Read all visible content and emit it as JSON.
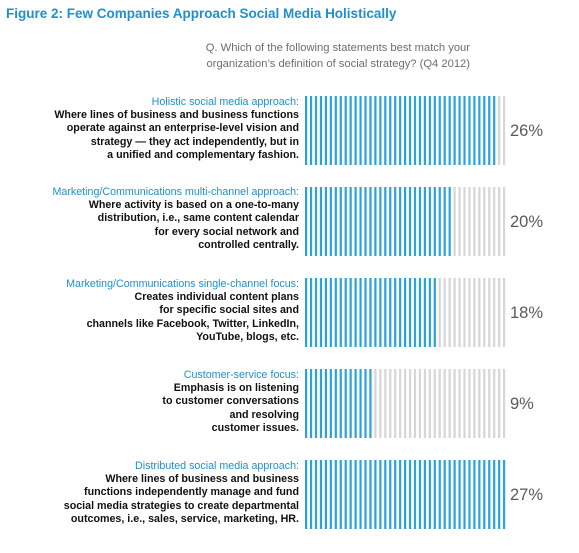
{
  "title": "Figure 2: Few Companies Approach Social Media Holistically",
  "question": {
    "line1": "Q. Which of the following statements best match your",
    "line2": "organization’s definition of social strategy? (Q4 2012)"
  },
  "colors": {
    "title": "#1f8fcf",
    "bar_filled": "#2aa3dc",
    "bar_empty": "#d6d6d6",
    "category": "#1f8fcf"
  },
  "chart_data": {
    "type": "bar",
    "orientation": "horizontal",
    "categories": [
      "Holistic social media approach:",
      "Marketing/Communications multi-channel approach:",
      "Marketing/Communications single-channel focus:",
      "Customer-service focus:",
      "Distributed social media approach:"
    ],
    "descriptions": [
      [
        "Where lines of business and business functions",
        "operate against an enterprise-level vision and",
        "strategy — they act independently, but in",
        "a unified and complementary fashion."
      ],
      [
        "Where activity is based on a one-to-many",
        "distribution, i.e., same content calendar",
        "for every social network and",
        "controlled centrally."
      ],
      [
        "Creates individual content plans",
        "for specific social sites and",
        "channels like Facebook, Twitter, LinkedIn,",
        "YouTube, blogs, etc."
      ],
      [
        "Emphasis is on listening",
        "to customer conversations",
        "and resolving",
        "customer issues."
      ],
      [
        "Where lines of business and business",
        "functions independently manage and fund",
        "social media strategies to create departmental",
        "outcomes, i.e., sales, service, marketing, HR."
      ]
    ],
    "values": [
      26,
      20,
      18,
      9,
      27
    ],
    "value_labels": [
      "26%",
      "20%",
      "18%",
      "9%",
      "27%"
    ],
    "xlim": [
      0,
      27
    ]
  }
}
